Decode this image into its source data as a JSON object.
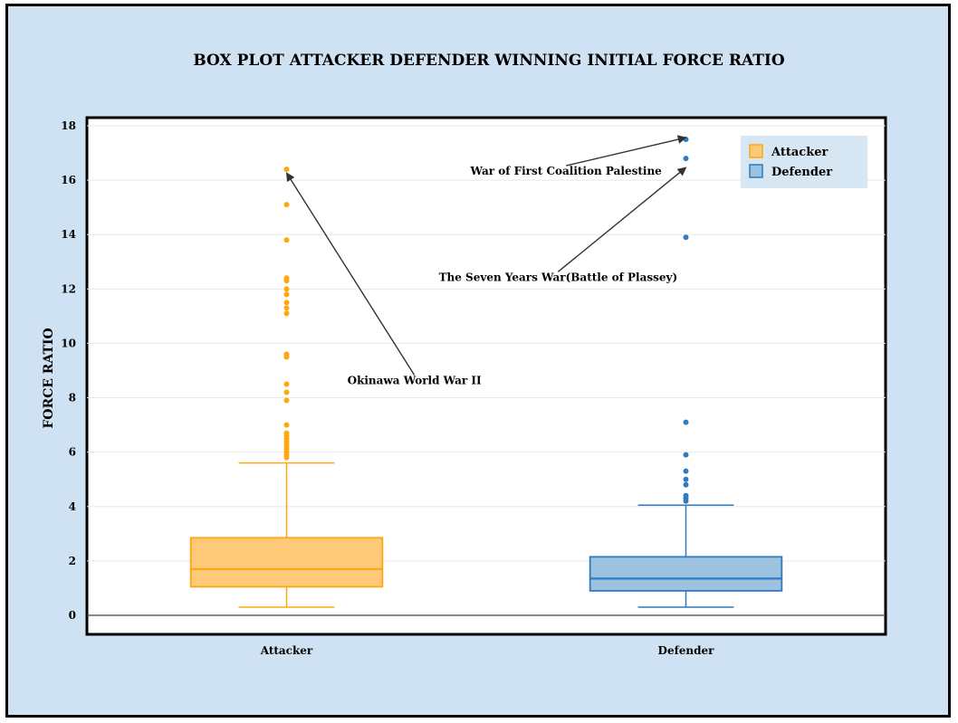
{
  "chart_data": {
    "type": "box",
    "title": "BOX PLOT ATTACKER DEFENDER WINNING INITIAL FORCE RATIO",
    "xlabel": "",
    "ylabel": "FORCE RATIO",
    "categories": [
      "Attacker",
      "Defender"
    ],
    "ylim": [
      -0.7,
      18.3
    ],
    "yticks": [
      0,
      2,
      4,
      6,
      8,
      10,
      12,
      14,
      16,
      18
    ],
    "grid": true,
    "legend_position": "top-right",
    "series": [
      {
        "name": "Attacker",
        "color": "#ffa70f",
        "fill": "#ffc97a",
        "whisker_low": 0.3,
        "q1": 1.05,
        "median": 1.7,
        "q3": 2.85,
        "whisker_high": 5.6,
        "outliers": [
          5.8,
          5.9,
          6.0,
          6.1,
          6.2,
          6.3,
          6.4,
          6.5,
          6.6,
          6.7,
          7.0,
          7.9,
          8.2,
          8.5,
          9.5,
          9.6,
          11.1,
          11.3,
          11.5,
          11.8,
          12.0,
          12.3,
          12.4,
          13.8,
          15.1,
          16.4
        ]
      },
      {
        "name": "Defender",
        "color": "#2f7bbd",
        "fill": "#9cc2df",
        "whisker_low": 0.3,
        "q1": 0.9,
        "median": 1.35,
        "q3": 2.15,
        "whisker_high": 4.05,
        "outliers": [
          4.2,
          4.3,
          4.4,
          4.8,
          5.0,
          5.3,
          5.9,
          7.1,
          13.9,
          16.8,
          17.5
        ]
      }
    ],
    "annotations": [
      {
        "text": "Okinawa World War II",
        "label_cat": 0.32,
        "label_y": 8.5,
        "target_cat": 0.0,
        "target_y": 16.4
      },
      {
        "text": "War of First Coalition Palestine",
        "label_cat": 0.7,
        "label_y": 16.2,
        "target_cat": 1.0,
        "target_y": 17.7
      },
      {
        "text": "The Seven Years War(Battle of Plassey)",
        "label_cat": 0.68,
        "label_y": 12.3,
        "target_cat": 1.0,
        "target_y": 16.6
      }
    ]
  }
}
